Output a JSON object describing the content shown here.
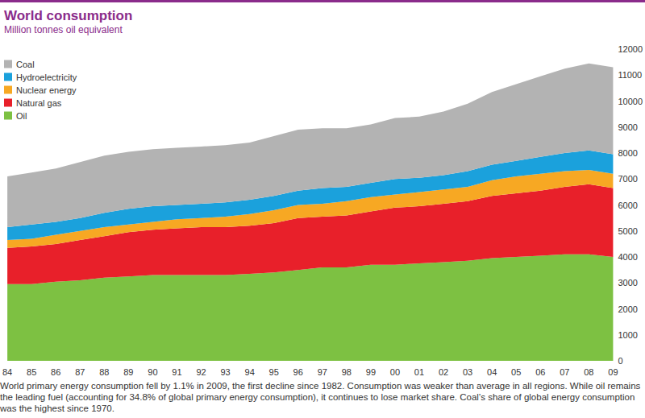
{
  "chart_data": {
    "type": "area",
    "title": "World consumption",
    "subtitle": "Million tonnes oil equivalent",
    "caption": "World primary energy consumption fell by 1.1% in 2009, the first decline since 1982. Consumption was weaker than average in all regions. While oil remains the leading fuel (accounting for 34.8% of global primary energy consumption), it continues to lose market share. Coal’s share of global energy consumption was the highest since 1970.",
    "categories": [
      "84",
      "85",
      "86",
      "87",
      "88",
      "89",
      "90",
      "91",
      "92",
      "93",
      "94",
      "95",
      "96",
      "97",
      "98",
      "99",
      "00",
      "01",
      "02",
      "03",
      "04",
      "05",
      "06",
      "07",
      "08",
      "09"
    ],
    "stacked": true,
    "legend": "top-left",
    "grid": false,
    "ylim": [
      0,
      12000
    ],
    "yticks": [
      0,
      1000,
      2000,
      3000,
      4000,
      5000,
      6000,
      7000,
      8000,
      9000,
      10000,
      11000,
      12000
    ],
    "series": [
      {
        "name": "Oil",
        "color": "#7dc142",
        "values": [
          2950,
          2950,
          3050,
          3100,
          3200,
          3250,
          3300,
          3300,
          3300,
          3300,
          3350,
          3400,
          3500,
          3600,
          3600,
          3700,
          3700,
          3750,
          3800,
          3850,
          3950,
          4000,
          4050,
          4100,
          4100,
          4000
        ]
      },
      {
        "name": "Natural gas",
        "color": "#e8202a",
        "values": [
          1400,
          1450,
          1450,
          1550,
          1600,
          1700,
          1750,
          1800,
          1850,
          1850,
          1850,
          1900,
          2000,
          1950,
          2000,
          2050,
          2200,
          2200,
          2250,
          2300,
          2400,
          2450,
          2500,
          2600,
          2700,
          2650
        ]
      },
      {
        "name": "Nuclear energy",
        "color": "#f7a823",
        "values": [
          300,
          300,
          350,
          350,
          350,
          300,
          300,
          350,
          350,
          400,
          450,
          500,
          500,
          500,
          550,
          550,
          500,
          550,
          550,
          550,
          600,
          650,
          650,
          600,
          550,
          550
        ]
      },
      {
        "name": "Hydroelectricity",
        "color": "#1ba1dc",
        "values": [
          500,
          550,
          500,
          500,
          550,
          600,
          600,
          550,
          550,
          550,
          550,
          550,
          550,
          600,
          550,
          550,
          600,
          550,
          550,
          600,
          600,
          600,
          650,
          700,
          750,
          750
        ]
      },
      {
        "name": "Coal",
        "color": "#b3b3b3",
        "values": [
          1950,
          2000,
          2050,
          2150,
          2200,
          2200,
          2200,
          2200,
          2200,
          2200,
          2200,
          2300,
          2350,
          2300,
          2250,
          2250,
          2350,
          2350,
          2450,
          2600,
          2800,
          2950,
          3100,
          3250,
          3350,
          3350
        ]
      }
    ]
  }
}
